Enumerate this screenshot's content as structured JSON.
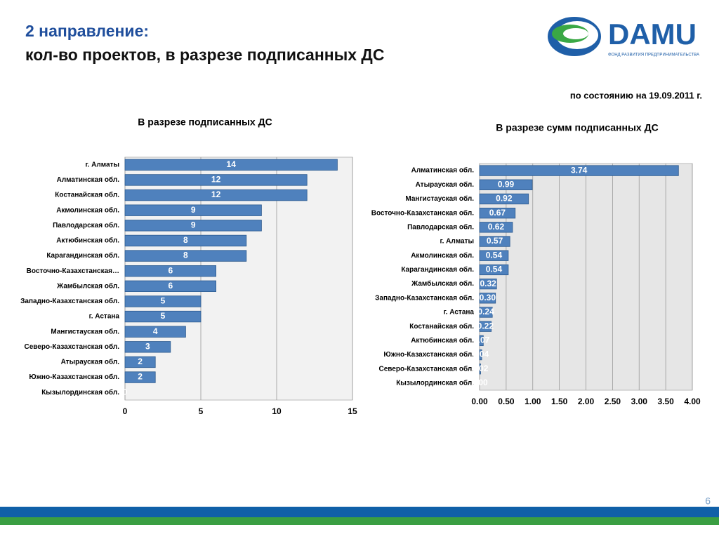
{
  "header": {
    "title_line1": "2  направление:",
    "title_line2": "кол-во проектов,  в разрезе подписанных ДС",
    "date_note": "по состоянию на 19.09.2011 г.",
    "logo_text": "DAMU",
    "logo_subtext": "ФОНД РАЗВИТИЯ ПРЕДПРИНИМАТЕЛЬСТВА"
  },
  "page_number": "6",
  "chart_data": [
    {
      "type": "hbar",
      "title": "В разрезе подписанных ДС",
      "categories": [
        "г. Алматы",
        "Алматинская обл.",
        "Костанайская обл.",
        "Акмолинская обл.",
        "Павлодарская обл.",
        "Актюбинская обл.",
        "Карагандинская обл.",
        "Восточно-Казахстанская…",
        "Жамбылская обл.",
        "Западно-Казахстанская обл.",
        "г. Астана",
        "Мангистауская обл.",
        "Северо-Казахстанская обл.",
        "Атырауская обл.",
        "Южно-Казахстанская обл.",
        "Кызылординская обл."
      ],
      "values": [
        14,
        12,
        12,
        9,
        9,
        8,
        8,
        6,
        6,
        5,
        5,
        4,
        3,
        2,
        2,
        0
      ],
      "color": "#4f81bd",
      "xlim": [
        0,
        15
      ],
      "xticks": [
        0,
        5,
        10,
        15
      ],
      "grid": true
    },
    {
      "type": "hbar",
      "title": "В разрезе сумм подписанных ДС",
      "categories": [
        "Алматинская обл.",
        "Атырауская обл.",
        "Мангистауская обл.",
        "Восточно-Казахстанская обл.",
        "Павлодарская обл.",
        "г. Алматы",
        "Акмолинская обл.",
        "Карагандинская обл.",
        "Жамбылская обл.",
        "Западно-Казахстанская обл.",
        "г. Астана",
        "Костанайская обл.",
        "Актюбинская обл.",
        "Южно-Казахстанская обл.",
        "Северо-Казахстанская обл.",
        "Кызылординская обл."
      ],
      "values": [
        3.74,
        0.99,
        0.92,
        0.67,
        0.62,
        0.57,
        0.54,
        0.54,
        0.32,
        0.3,
        0.24,
        0.22,
        0.07,
        0.04,
        0.02,
        0
      ],
      "value_labels": [
        "3.74",
        "0.99",
        "0.92",
        "0.67",
        "0.62",
        "0.57",
        "0.54",
        "0.54",
        "0.32",
        "0.30",
        "0.24",
        "0.22",
        "0.07",
        "0.04",
        "0.02",
        "0.00"
      ],
      "color": "#4f81bd",
      "xlim": [
        0,
        4
      ],
      "xticks": [
        {
          "value": 0,
          "label": "0.00"
        },
        {
          "value": 0.5,
          "label": "0.50"
        },
        {
          "value": 1,
          "label": "1.00"
        },
        {
          "value": 1.5,
          "label": "1.50"
        },
        {
          "value": 2,
          "label": "2.00"
        },
        {
          "value": 2.5,
          "label": "2.50"
        },
        {
          "value": 3,
          "label": "3.00"
        },
        {
          "value": 3.5,
          "label": "3.50"
        },
        {
          "value": 4,
          "label": "4.00"
        }
      ],
      "grid": true
    }
  ]
}
